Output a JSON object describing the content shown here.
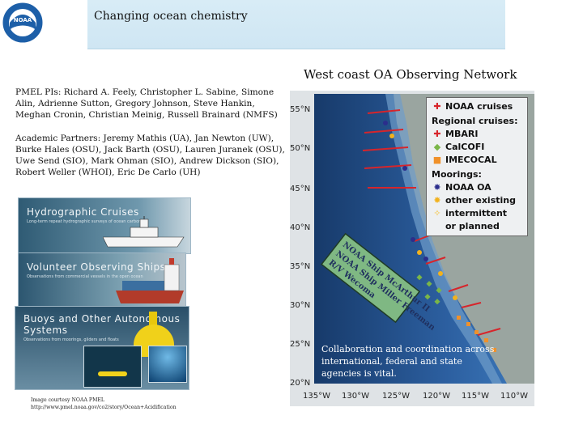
{
  "header": {
    "title": "Changing ocean chemistry",
    "logo_text": "NOAA"
  },
  "section_title": "West coast OA Observing Network",
  "pmel_pis": "PMEL PIs: Richard A. Feely, Christopher L. Sabine, Simone Alin, Adrienne Sutton, Gregory Johnson, Steve Hankin, Meghan Cronin, Christian Meinig, Russell Brainard (NMFS)",
  "academic_partners": "Academic Partners: Jeremy Mathis (UA), Jan Newton (UW), Burke Hales (OSU), Jack Barth (OSU), Lauren Juranek (OSU), Uwe Send (SIO), Mark Ohman (SIO), Andrew Dickson (SIO), Robert Weller (WHOI), Eric De Carlo (UH)",
  "panels": [
    {
      "title": "Hydrographic Cruises",
      "subtitle": "Long-term repeat hydrographic surveys of ocean carbon"
    },
    {
      "title": "Volunteer Observing Ships",
      "subtitle": "Observations from commercial vessels in the open ocean"
    },
    {
      "title": "Buoys and Other Autonomous Systems",
      "subtitle": "Observations from moorings, gliders and floats"
    }
  ],
  "credit": {
    "line1": "Image courtesy NOAA PMEL",
    "line2": "http://www.pmel.noaa.gov/co2/story/Ocean+Acidification"
  },
  "map": {
    "lat_labels": [
      "55°N",
      "50°N",
      "45°N",
      "40°N",
      "35°N",
      "30°N",
      "25°N",
      "20°N"
    ],
    "lon_labels": [
      "135°W",
      "130°W",
      "125°W",
      "120°W",
      "115°W",
      "110°W"
    ],
    "ship_text_lines": [
      "NOAA Ship McArthur II",
      "NOAA Ship Miller Freeman",
      "R/V Wecoma"
    ],
    "legend": {
      "noaa_cruises": "NOAA cruises",
      "regional_cruises": "Regional cruises:",
      "mbari": "MBARI",
      "calcofi": "CalCOFI",
      "imecocal": "IMECOCAL",
      "moorings": "Moorings:",
      "noaa_oa": "NOAA OA",
      "other_existing": "other existing",
      "intermittent": "intermittent",
      "or_planned": "or planned"
    },
    "colors": {
      "noaa_cruises": "#d7252b",
      "mbari": "#d7252b",
      "calcofi": "#7ab648",
      "imecocal": "#f0912a",
      "noaa_oa": "#2b2e8c",
      "other_existing": "#f2b21d",
      "intermittent": "#f5c542"
    },
    "caption": "Collaboration and coordination across international, federal and state agencies is vital."
  }
}
